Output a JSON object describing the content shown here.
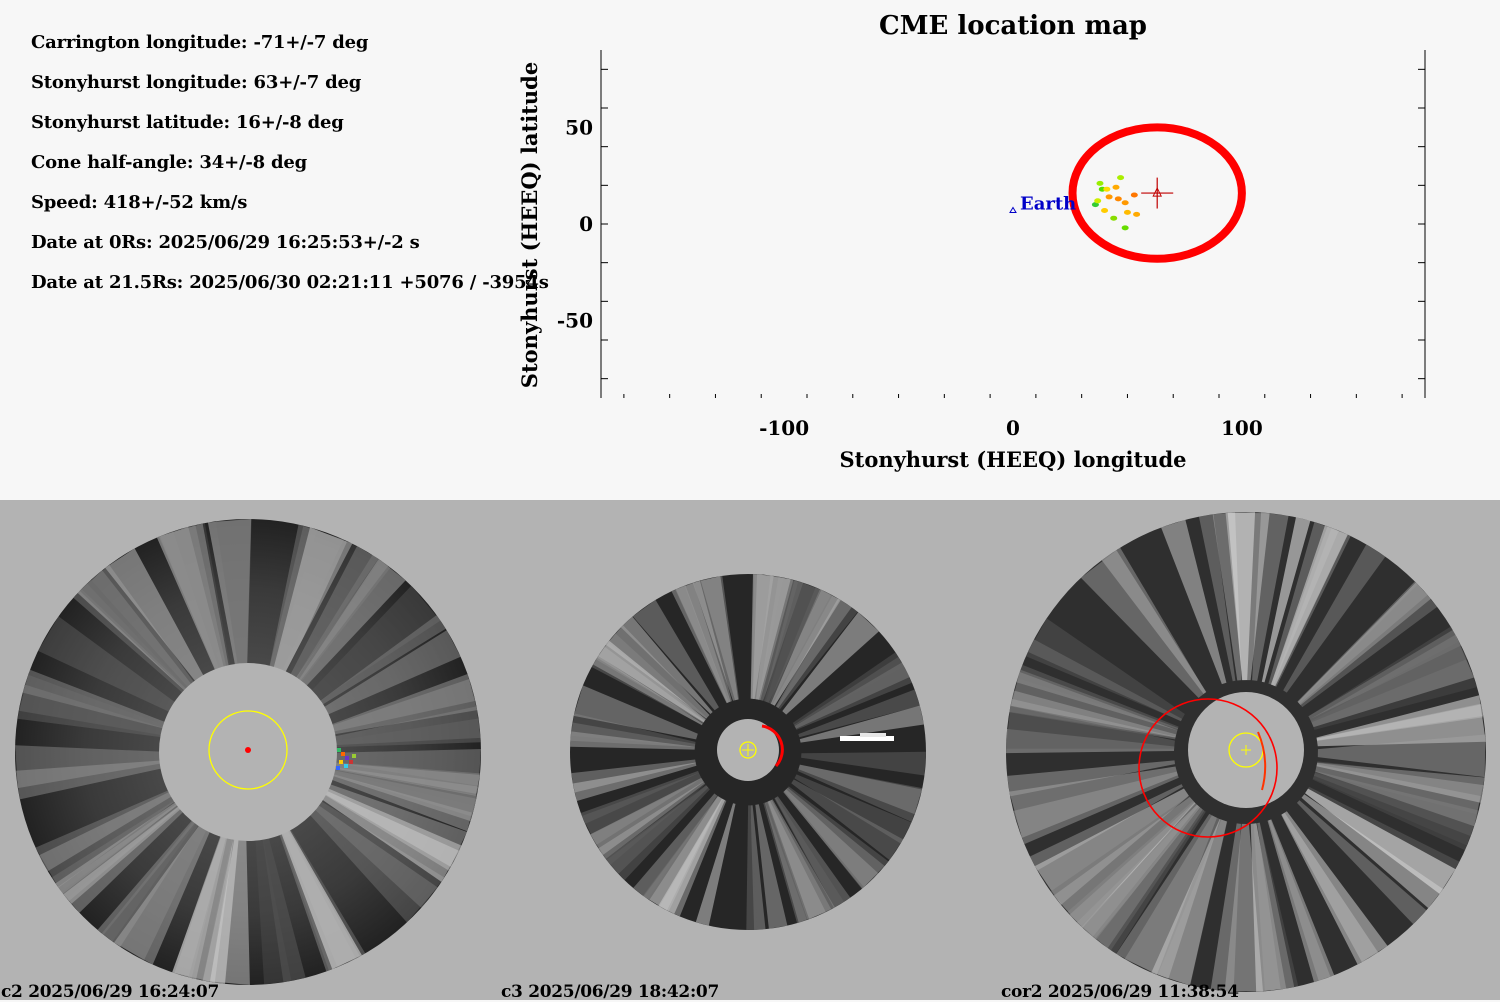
{
  "info": {
    "lines": [
      "Carrington longitude: -71+/-7 deg",
      "Stonyhurst longitude: 63+/-7 deg",
      "Stonyhurst latitude: 16+/-8 deg",
      "Cone half-angle: 34+/-8 deg",
      "Speed: 418+/-52 km/s",
      "Date at 0Rs: 2025/06/29 16:25:53+/-2 s",
      "Date at 21.5Rs: 2025/06/30 02:21:11 +5076 / -3954s"
    ]
  },
  "chart_data": {
    "type": "scatter",
    "title": "CME location map",
    "xlabel": "Stonyhurst (HEEQ) longitude",
    "ylabel": "Stonyhurst (HEEQ) latitude",
    "xlim": [
      -180,
      180
    ],
    "ylim": [
      -90,
      90
    ],
    "xticks": [
      -100,
      0,
      100
    ],
    "yticks": [
      50,
      0,
      -50
    ],
    "grid": false,
    "earth": {
      "label": "Earth",
      "lon": 0,
      "lat": 7,
      "color": "#0000c8"
    },
    "cme_center": {
      "lon": 63,
      "lat": 16,
      "lon_err": 7,
      "lat_err": 8,
      "color": "#c00000"
    },
    "cone_outline": {
      "center_lon": 63,
      "center_lat": 16,
      "half_width_lon": 37,
      "half_height_lat": 34,
      "color": "#ff0000"
    },
    "source_points": [
      {
        "lon": 38,
        "lat": 21,
        "color": "#99ee00"
      },
      {
        "lon": 39,
        "lat": 18,
        "color": "#55dd00"
      },
      {
        "lon": 36,
        "lat": 10,
        "color": "#33cc33"
      },
      {
        "lon": 37,
        "lat": 12,
        "color": "#ccee00"
      },
      {
        "lon": 40,
        "lat": 7,
        "color": "#ffcc00"
      },
      {
        "lon": 42,
        "lat": 14,
        "color": "#ff9900"
      },
      {
        "lon": 45,
        "lat": 19,
        "color": "#ffaa00"
      },
      {
        "lon": 46,
        "lat": 13,
        "color": "#ff8800"
      },
      {
        "lon": 49,
        "lat": 11,
        "color": "#ff9900"
      },
      {
        "lon": 50,
        "lat": 6,
        "color": "#ffbb00"
      },
      {
        "lon": 53,
        "lat": 15,
        "color": "#ff7700"
      },
      {
        "lon": 54,
        "lat": 5,
        "color": "#ffaa00"
      },
      {
        "lon": 47,
        "lat": 24,
        "color": "#aaee00"
      },
      {
        "lon": 44,
        "lat": 3,
        "color": "#88dd00"
      },
      {
        "lon": 49,
        "lat": -2,
        "color": "#66dd00"
      },
      {
        "lon": 41,
        "lat": 18,
        "color": "#ffdd00"
      }
    ]
  },
  "coronagraphs": [
    {
      "caption": "c2 2025/06/29 16:24:07"
    },
    {
      "caption": "c3 2025/06/29 18:42:07"
    },
    {
      "caption": "cor2 2025/06/29 11:38:54"
    }
  ],
  "colors": {
    "fit_outline": "#ff0000",
    "sun_limb": "#ffff00",
    "top_background": "#f7f7f7",
    "bottom_background": "#b3b3b3"
  }
}
